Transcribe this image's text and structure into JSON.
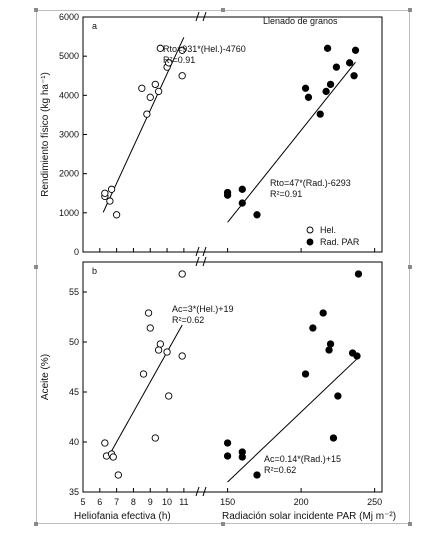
{
  "figure_title": "Llenado de granos",
  "chart_data": [
    {
      "panel_label": "a",
      "type": "scatter",
      "ylabel": "Rendimiento físico (kg ha⁻¹)",
      "ylim": [
        0,
        6000
      ],
      "yticks": [
        0,
        1000,
        2000,
        3000,
        4000,
        5000,
        6000
      ],
      "ytick_labels": [
        "0",
        "1000",
        "2000",
        "3000",
        "4000",
        "5000",
        "6000"
      ],
      "series": [
        {
          "name": "Hel.",
          "marker": "open-circle",
          "x_axis": "helio",
          "x": [
            6.3,
            6.3,
            6.6,
            6.7,
            7.0,
            8.5,
            8.8,
            9.0,
            9.3,
            9.5,
            9.6,
            10.0,
            10.1,
            10.9,
            10.9
          ],
          "y": [
            1420,
            1500,
            1300,
            1600,
            950,
            4180,
            3520,
            3950,
            4280,
            4100,
            5200,
            4720,
            4830,
            4500,
            5150
          ]
        },
        {
          "name": "Rad. PAR",
          "marker": "filled-circle",
          "x_axis": "rad",
          "x": [
            150,
            150,
            160,
            160,
            170,
            203,
            205,
            213,
            217,
            218,
            220,
            224,
            233,
            236,
            237
          ],
          "y": [
            1450,
            1520,
            1250,
            1600,
            950,
            4180,
            3950,
            3520,
            4100,
            5200,
            4280,
            4720,
            4830,
            4500,
            5150
          ]
        }
      ],
      "fits": [
        {
          "series": "Hel.",
          "equation": "Rto=931*(Hel.)-4760",
          "r2": "R²=0.91",
          "x_axis": "helio",
          "x_range": [
            6.2,
            11.0
          ],
          "slope": 931,
          "intercept": -4760
        },
        {
          "series": "Rad. PAR",
          "equation": "Rto=47*(Rad.)-6293",
          "r2": "R²=0.91",
          "x_axis": "rad",
          "x_range": [
            150,
            237
          ],
          "slope": 47,
          "intercept": -6293
        }
      ],
      "legend": [
        {
          "label": "Hel.",
          "marker": "open-circle"
        },
        {
          "label": "Rad. PAR",
          "marker": "filled-circle"
        }
      ],
      "legend_position": "bottom-right"
    },
    {
      "panel_label": "b",
      "type": "scatter",
      "ylabel": "Aceite (%)",
      "ylim": [
        35,
        58
      ],
      "yticks": [
        35,
        40,
        45,
        50,
        55
      ],
      "ytick_labels": [
        "35",
        "40",
        "45",
        "50",
        "55"
      ],
      "series": [
        {
          "name": "Hel.",
          "marker": "open-circle",
          "x_axis": "helio",
          "x": [
            6.3,
            6.4,
            6.7,
            6.8,
            7.1,
            8.6,
            8.9,
            9.0,
            9.3,
            9.5,
            9.6,
            10.0,
            10.1,
            10.9,
            10.9
          ],
          "y": [
            39.9,
            38.6,
            38.8,
            38.5,
            36.7,
            46.8,
            52.9,
            51.4,
            40.4,
            49.2,
            49.8,
            49.0,
            44.6,
            48.6,
            56.8
          ]
        },
        {
          "name": "Rad. PAR",
          "marker": "filled-circle",
          "x_axis": "rad",
          "x": [
            150,
            150,
            160,
            160,
            170,
            203,
            208,
            215,
            219,
            220,
            222,
            225,
            235,
            238,
            239
          ],
          "y": [
            39.9,
            38.6,
            38.5,
            39.0,
            36.7,
            46.8,
            51.4,
            52.9,
            49.2,
            49.8,
            40.4,
            44.6,
            48.9,
            48.6,
            56.8
          ]
        }
      ],
      "fits": [
        {
          "series": "Hel.",
          "equation": "Ac=3*(Hel.)+19",
          "r2": "R²=0.62",
          "x_axis": "helio",
          "x_range": [
            6.6,
            10.9
          ],
          "slope": 3,
          "intercept": 19
        },
        {
          "series": "Rad. PAR",
          "equation": "Ac=0.14*(Rad.)+15",
          "r2": "R²=0.62",
          "x_axis": "rad",
          "x_range": [
            150,
            238
          ],
          "slope": 0.14,
          "intercept": 15
        }
      ]
    }
  ],
  "x_axes": {
    "helio": {
      "label": "Heliofania efectiva (h)",
      "range": [
        5,
        11.9
      ],
      "ticks": [
        5,
        6,
        7,
        8,
        9,
        10,
        11
      ],
      "tick_labels": [
        "5",
        "6",
        "7",
        "8",
        "9",
        "10",
        "11"
      ]
    },
    "rad": {
      "label": "Radiación solar incidente PAR (Mj m⁻²)",
      "range": [
        136,
        255
      ],
      "ticks": [
        150,
        200,
        250
      ],
      "tick_labels": [
        "150",
        "200",
        "250"
      ]
    }
  },
  "colors": {
    "axis": "#000000",
    "open_marker_fill": "#ffffff",
    "filled_marker": "#000000",
    "frame": "#bdbdbd",
    "handle": "#8a8a8a"
  }
}
